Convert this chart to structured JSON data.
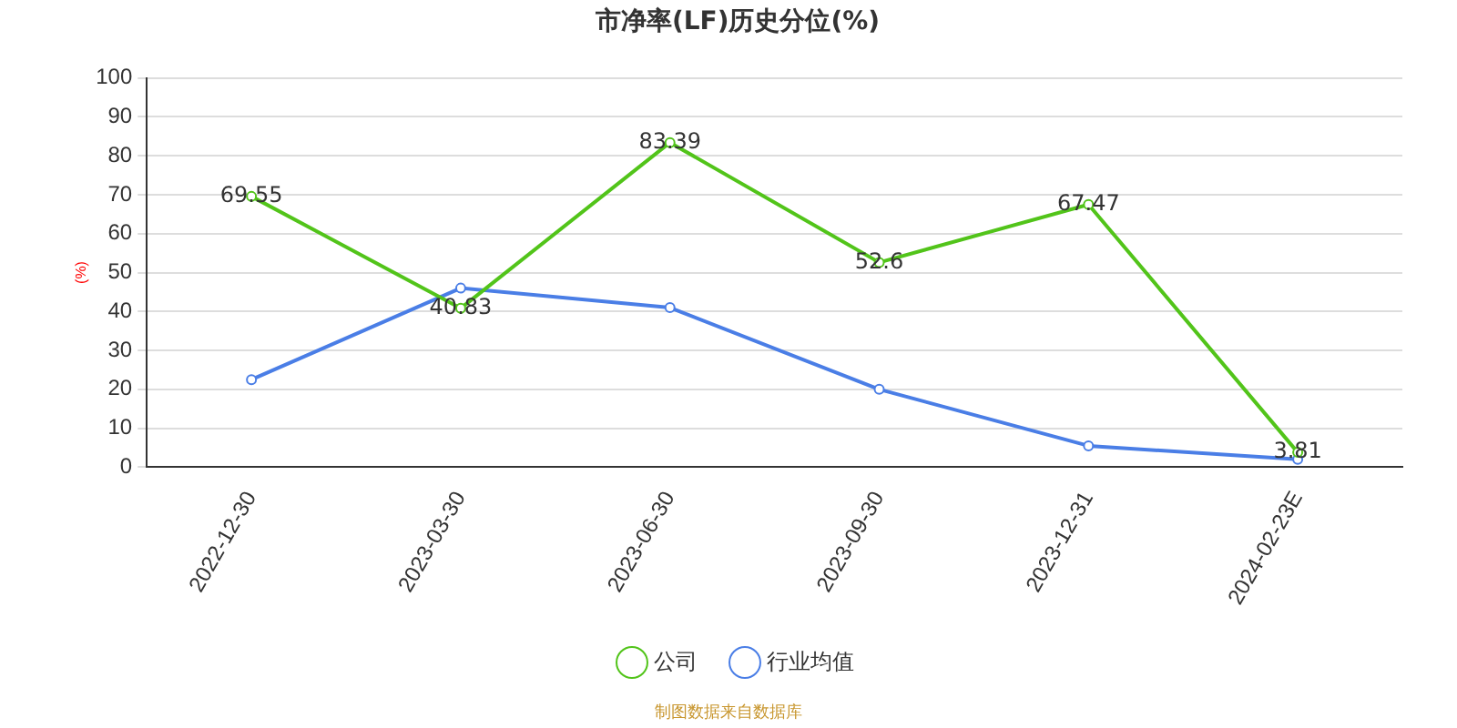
{
  "chart_data": {
    "type": "line",
    "title": "市净率(LF)历史分位(%)",
    "ylabel": "(%)",
    "categories": [
      "2022-12-30",
      "2023-03-30",
      "2023-06-30",
      "2023-09-30",
      "2023-12-31",
      "2024-02-23E"
    ],
    "series": [
      {
        "name": "公司",
        "color": "#52c41a",
        "values": [
          69.55,
          40.83,
          83.39,
          52.6,
          67.47,
          3.81
        ],
        "value_labels": [
          "69.55",
          "40.83",
          "83.39",
          "52.6",
          "67.47",
          "3.81"
        ]
      },
      {
        "name": "行业均值",
        "color": "#4a7ee6",
        "values": [
          22.5,
          46,
          41,
          20,
          5.5,
          2
        ]
      }
    ],
    "ylim": [
      0,
      100
    ],
    "yticks": [
      0,
      10,
      20,
      30,
      40,
      50,
      60,
      70,
      80,
      90,
      100
    ],
    "grid": "y",
    "legend": "bottom",
    "marker": "circle",
    "line_style": "solid",
    "annotations": [
      "制图数据来自数据库"
    ]
  }
}
